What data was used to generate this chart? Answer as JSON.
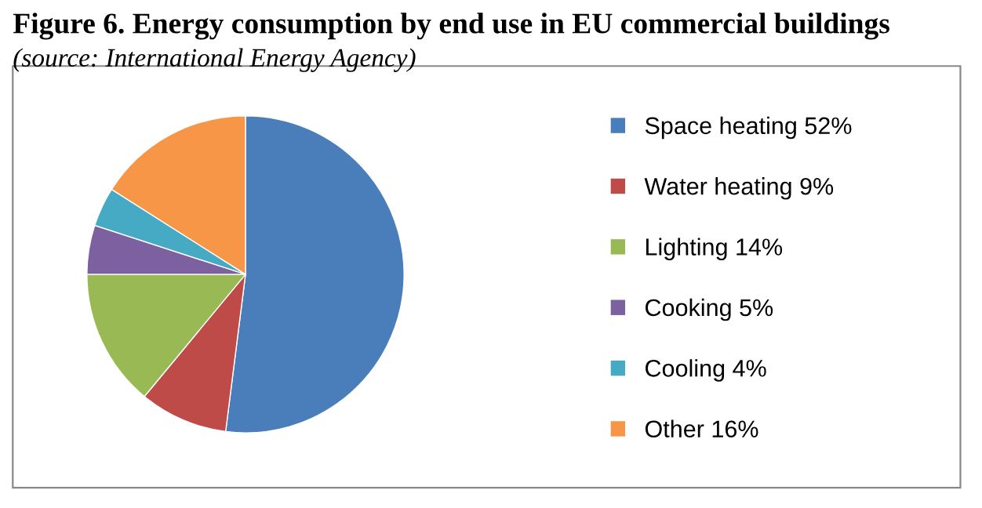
{
  "chart_data": {
    "type": "pie",
    "title": "Figure 6. Energy consumption by end use in EU commercial buildings",
    "subtitle": "(source: International Energy Agency)",
    "categories": [
      "Space heating",
      "Water heating",
      "Lighting",
      "Cooking",
      "Cooling",
      "Other"
    ],
    "values": [
      52,
      9,
      14,
      5,
      4,
      16
    ],
    "value_labels": [
      "52%",
      "9%",
      "14%",
      "5%",
      "4%",
      "16%"
    ],
    "colors": [
      "#4a7ebb",
      "#be4b48",
      "#98b954",
      "#7d60a0",
      "#46aac5",
      "#f79646"
    ],
    "legend": "right"
  }
}
